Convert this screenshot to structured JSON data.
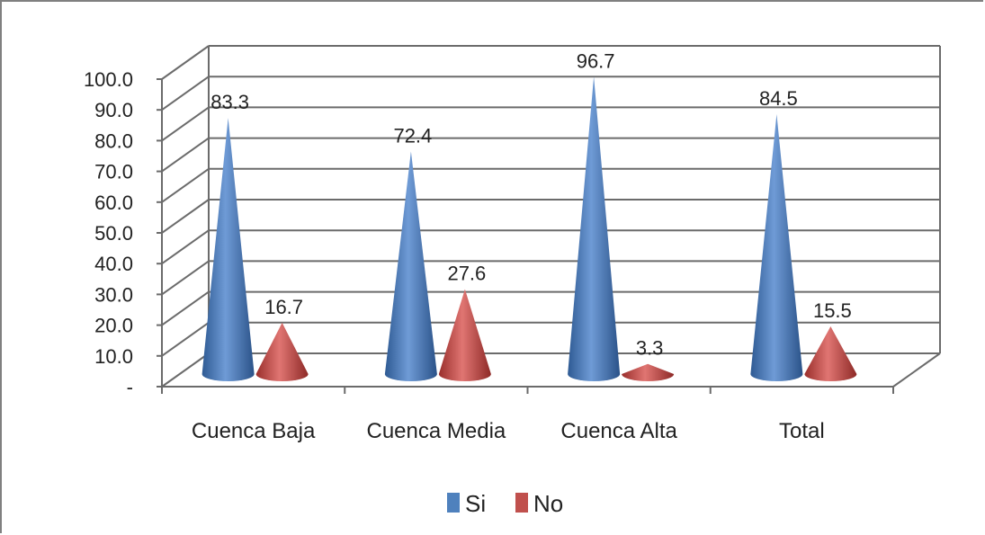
{
  "chart_data": {
    "type": "bar",
    "shape": "3d-cone",
    "categories": [
      "Cuenca Baja",
      "Cuenca Media",
      "Cuenca Alta",
      "Total"
    ],
    "series": [
      {
        "name": "Si",
        "values": [
          83.3,
          72.4,
          96.7,
          84.5
        ],
        "color": "#4F81BD"
      },
      {
        "name": "No",
        "values": [
          16.7,
          27.6,
          3.3,
          15.5
        ],
        "color": "#C0504D"
      }
    ],
    "data_labels": {
      "Si": [
        "83.3",
        "72.4",
        "96.7",
        "84.5"
      ],
      "No": [
        "16.7",
        "27.6",
        "3.3",
        "15.5"
      ]
    },
    "ylim": [
      0,
      100
    ],
    "y_ticks": [
      "-",
      "10.0",
      "20.0",
      "30.0",
      "40.0",
      "50.0",
      "60.0",
      "70.0",
      "80.0",
      "90.0",
      "100.0"
    ],
    "grid": true,
    "legend_position": "bottom"
  }
}
